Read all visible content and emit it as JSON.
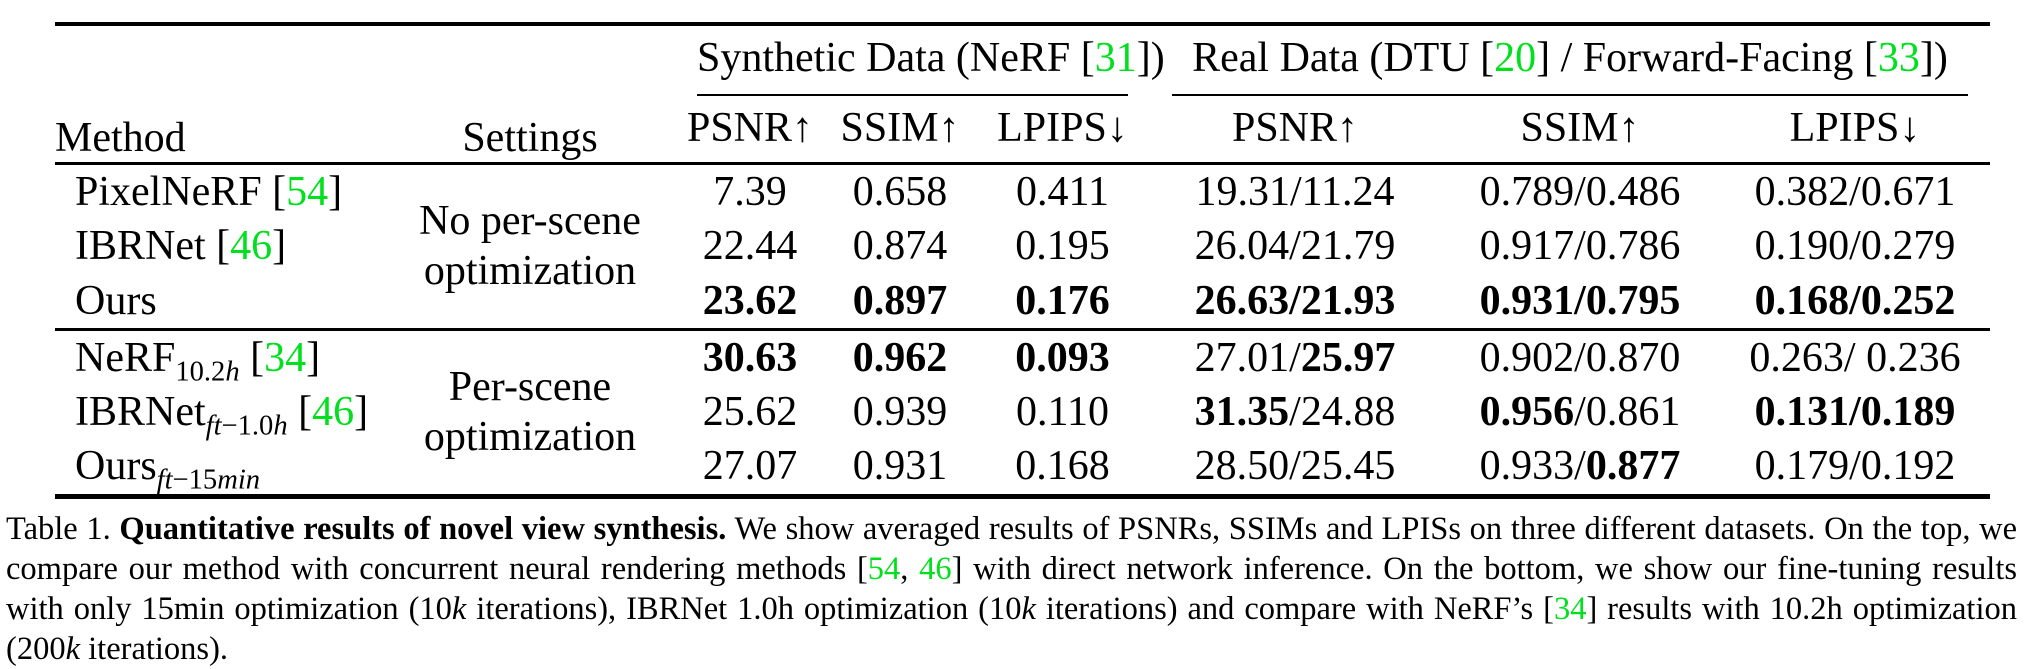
{
  "accent": {
    "cite_green": "#00E01C"
  },
  "header": {
    "method": "Method",
    "settings": "Settings",
    "group_synthetic": [
      {
        "t": "Synthetic Data (NeRF ["
      },
      {
        "t": "31",
        "g": true
      },
      {
        "t": "])"
      }
    ],
    "group_real": [
      {
        "t": "Real Data (DTU ["
      },
      {
        "t": "20",
        "g": true
      },
      {
        "t": "] / Forward-Facing ["
      },
      {
        "t": "33",
        "g": true
      },
      {
        "t": "])"
      }
    ],
    "metrics": [
      "PSNR↑",
      "SSIM↑",
      "LPIPS↓",
      "PSNR↑",
      "SSIM↑",
      "LPIPS↓"
    ]
  },
  "groups": [
    {
      "setting_lines": [
        "No per-scene",
        "optimization"
      ],
      "rows": [
        {
          "method": [
            {
              "t": "PixelNeRF ["
            },
            {
              "t": "54",
              "g": true
            },
            {
              "t": "]"
            }
          ],
          "cells": [
            [
              {
                "t": "7.39"
              }
            ],
            [
              {
                "t": "0.658"
              }
            ],
            [
              {
                "t": "0.411"
              }
            ],
            [
              {
                "t": "19.31/11.24"
              }
            ],
            [
              {
                "t": "0.789/0.486"
              }
            ],
            [
              {
                "t": "0.382/0.671"
              }
            ]
          ]
        },
        {
          "method": [
            {
              "t": "IBRNet ["
            },
            {
              "t": "46",
              "g": true
            },
            {
              "t": "]"
            }
          ],
          "cells": [
            [
              {
                "t": "22.44"
              }
            ],
            [
              {
                "t": "0.874"
              }
            ],
            [
              {
                "t": "0.195"
              }
            ],
            [
              {
                "t": "26.04/21.79"
              }
            ],
            [
              {
                "t": "0.917/0.786"
              }
            ],
            [
              {
                "t": "0.190/0.279"
              }
            ]
          ]
        },
        {
          "method": [
            {
              "t": "Ours"
            }
          ],
          "cells": [
            [
              {
                "t": "23.62",
                "b": true
              }
            ],
            [
              {
                "t": "0.897",
                "b": true
              }
            ],
            [
              {
                "t": "0.176",
                "b": true
              }
            ],
            [
              {
                "t": "26.63/21.93",
                "b": true
              }
            ],
            [
              {
                "t": "0.931/0.795",
                "b": true
              }
            ],
            [
              {
                "t": "0.168/0.252",
                "b": true
              }
            ]
          ]
        }
      ]
    },
    {
      "setting_lines": [
        "Per-scene",
        "optimization"
      ],
      "rows": [
        {
          "method": [
            {
              "t": "NeRF"
            },
            {
              "t": "10.2",
              "sub": true
            },
            {
              "t": "h",
              "sub": true,
              "i": true
            },
            {
              "t": " ["
            },
            {
              "t": "34",
              "g": true
            },
            {
              "t": "]"
            }
          ],
          "cells": [
            [
              {
                "t": "30.63",
                "b": true
              }
            ],
            [
              {
                "t": "0.962",
                "b": true
              }
            ],
            [
              {
                "t": "0.093",
                "b": true
              }
            ],
            [
              {
                "t": "27.01/"
              },
              {
                "t": "25.97",
                "b": true
              }
            ],
            [
              {
                "t": "0.902/0.870"
              }
            ],
            [
              {
                "t": "0.263/ 0.236"
              }
            ]
          ]
        },
        {
          "method": [
            {
              "t": "IBRNet"
            },
            {
              "t": "ft",
              "sub": true,
              "i": true
            },
            {
              "t": "−1.0",
              "sub": true
            },
            {
              "t": "h",
              "sub": true,
              "i": true
            },
            {
              "t": " ["
            },
            {
              "t": "46",
              "g": true
            },
            {
              "t": "]"
            }
          ],
          "cells": [
            [
              {
                "t": "25.62"
              }
            ],
            [
              {
                "t": "0.939"
              }
            ],
            [
              {
                "t": "0.110"
              }
            ],
            [
              {
                "t": "31.35",
                "b": true
              },
              {
                "t": "/24.88"
              }
            ],
            [
              {
                "t": "0.956",
                "b": true
              },
              {
                "t": "/0.861"
              }
            ],
            [
              {
                "t": "0.131/0.189",
                "b": true
              }
            ]
          ]
        },
        {
          "method": [
            {
              "t": "Ours"
            },
            {
              "t": "ft",
              "sub": true,
              "i": true
            },
            {
              "t": "−15",
              "sub": true
            },
            {
              "t": "min",
              "sub": true,
              "i": true
            }
          ],
          "cells": [
            [
              {
                "t": "27.07"
              }
            ],
            [
              {
                "t": "0.931"
              }
            ],
            [
              {
                "t": "0.168"
              }
            ],
            [
              {
                "t": "28.50/25.45"
              }
            ],
            [
              {
                "t": "0.933/"
              },
              {
                "t": "0.877",
                "b": true
              }
            ],
            [
              {
                "t": "0.179/0.192"
              }
            ]
          ]
        }
      ]
    }
  ],
  "caption": {
    "segments": [
      {
        "t": "Table 1. "
      },
      {
        "t": "Quantitative results of novel view synthesis.",
        "b": true
      },
      {
        "t": " We show averaged results of PSNRs, SSIMs and LPISs on three different datasets. On the top, we compare our method with concurrent neural rendering methods ["
      },
      {
        "t": "54",
        "g": true
      },
      {
        "t": ", "
      },
      {
        "t": "46",
        "g": true
      },
      {
        "t": "] with direct network inference. On the bottom, we show our fine-tuning results with only 15min optimization (10"
      },
      {
        "t": "k",
        "i": true
      },
      {
        "t": " iterations), IBRNet 1.0h optimization (10"
      },
      {
        "t": "k",
        "i": true
      },
      {
        "t": " iterations) and compare with NeRF’s ["
      },
      {
        "t": "34",
        "g": true
      },
      {
        "t": "] results with 10.2h optimization (200"
      },
      {
        "t": "k",
        "i": true
      },
      {
        "t": " iterations)."
      }
    ]
  }
}
